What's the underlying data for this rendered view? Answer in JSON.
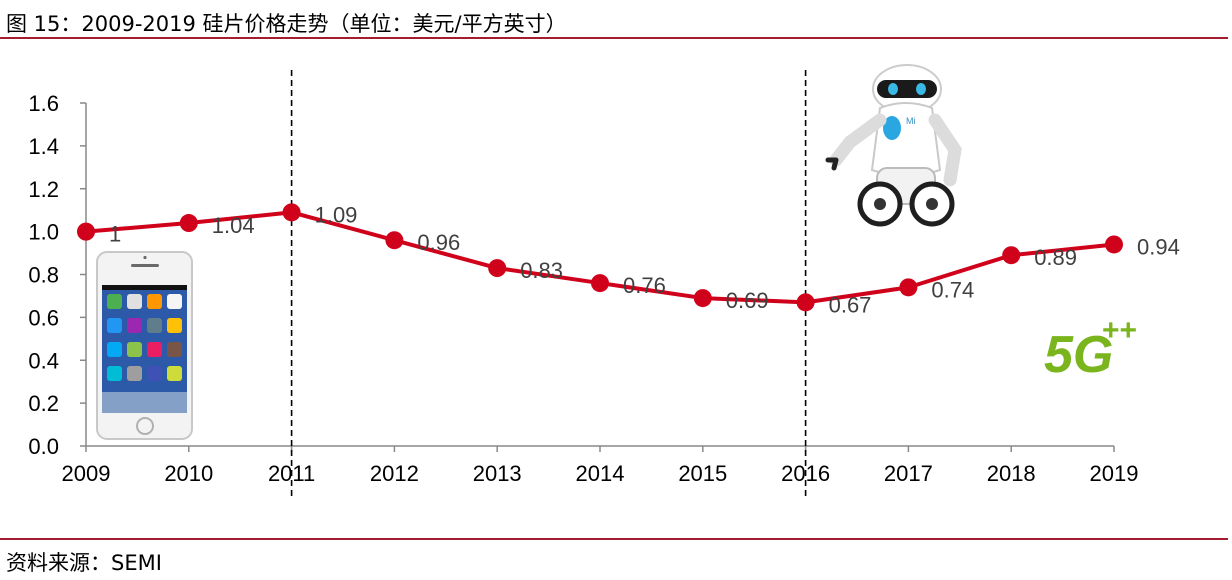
{
  "header": {
    "title": "图 15：2009-2019 硅片价格走势（单位：美元/平方英寸）"
  },
  "footer": {
    "source": "资料来源：SEMI"
  },
  "colors": {
    "series": "#d0021b",
    "rule": "#a51c30",
    "axis": "#888888",
    "logo_5g": "#7ab51d"
  },
  "decorations": {
    "phone_icon": "smartphone-icon",
    "robot_icon": "robot-icon",
    "logo_5g_text": "5G",
    "logo_5g_plus": "++"
  },
  "chart_data": {
    "type": "line",
    "categories": [
      "2009",
      "2010",
      "2011",
      "2012",
      "2013",
      "2014",
      "2015",
      "2016",
      "2017",
      "2018",
      "2019"
    ],
    "series": [
      {
        "values": [
          1.0,
          1.04,
          1.09,
          0.96,
          0.83,
          0.76,
          0.69,
          0.67,
          0.74,
          0.89,
          0.94
        ]
      }
    ],
    "data_labels": [
      "1",
      "1.04",
      "1.09",
      "0.96",
      "0.83",
      "0.76",
      "0.69",
      "0.67",
      "0.74",
      "0.89",
      "0.94"
    ],
    "yticks": [
      "0.0",
      "0.2",
      "0.4",
      "0.6",
      "0.8",
      "1.0",
      "1.2",
      "1.4",
      "1.6"
    ],
    "ylim": [
      0,
      1.6
    ],
    "grid": false,
    "legend": "none",
    "vertical_markers": [
      "2011",
      "2016"
    ]
  }
}
